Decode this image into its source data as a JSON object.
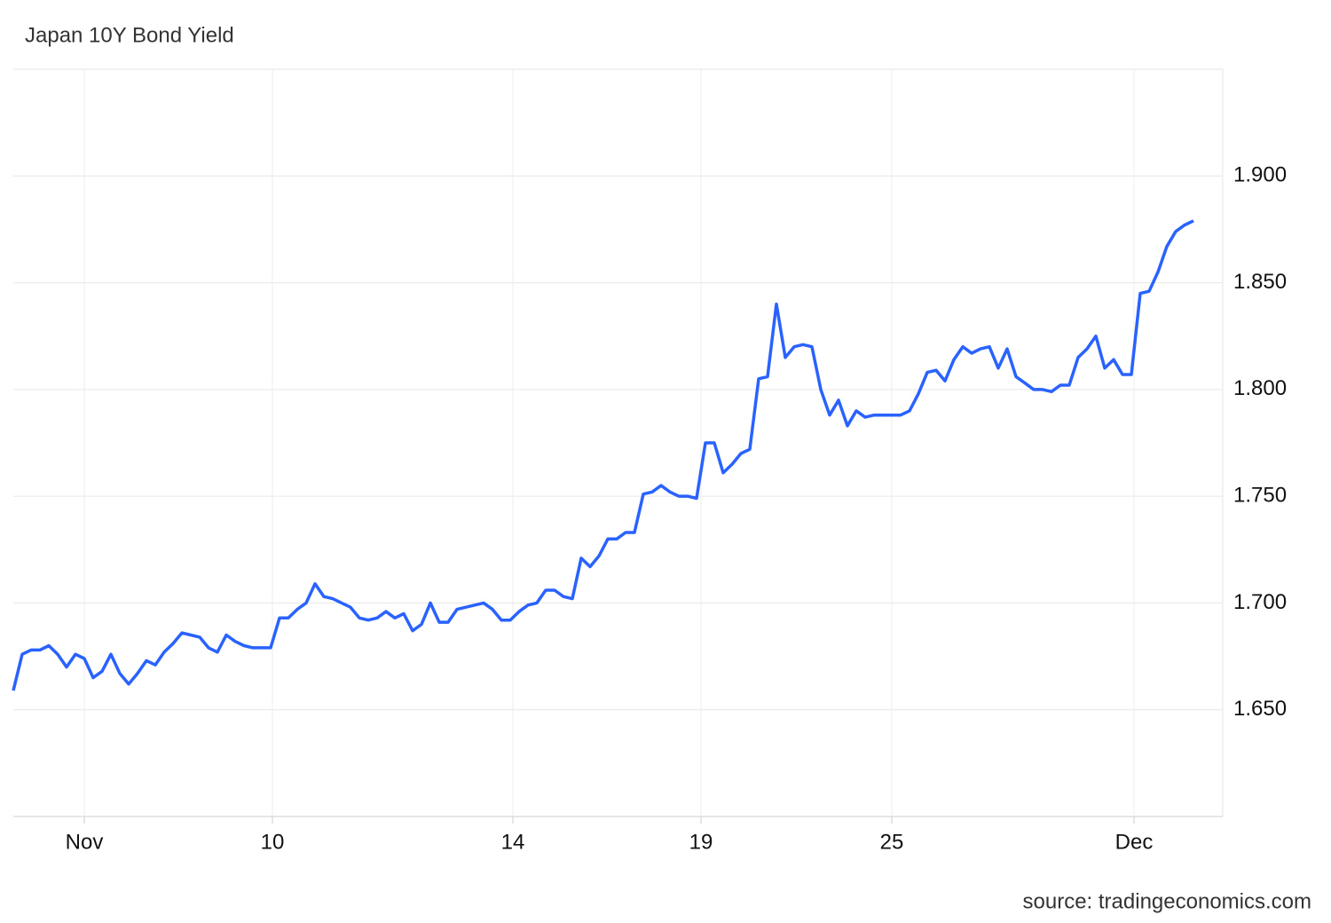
{
  "chart_data": {
    "type": "line",
    "title": "Japan 10Y Bond Yield",
    "source": "source: tradingeconomics.com",
    "series": [
      {
        "color": "#2962ff",
        "values": [
          1.659,
          1.676,
          1.678,
          1.678,
          1.68,
          1.676,
          1.67,
          1.676,
          1.674,
          1.665,
          1.668,
          1.676,
          1.667,
          1.662,
          1.667,
          1.673,
          1.671,
          1.677,
          1.681,
          1.686,
          1.685,
          1.684,
          1.679,
          1.677,
          1.685,
          1.682,
          1.68,
          1.679,
          1.679,
          1.679,
          1.693,
          1.693,
          1.697,
          1.7,
          1.709,
          1.703,
          1.702,
          1.7,
          1.698,
          1.693,
          1.692,
          1.693,
          1.696,
          1.693,
          1.695,
          1.687,
          1.69,
          1.7,
          1.691,
          1.691,
          1.697,
          1.698,
          1.699,
          1.7,
          1.697,
          1.692,
          1.692,
          1.696,
          1.699,
          1.7,
          1.706,
          1.706,
          1.703,
          1.702,
          1.721,
          1.717,
          1.722,
          1.73,
          1.73,
          1.733,
          1.733,
          1.751,
          1.752,
          1.755,
          1.752,
          1.75,
          1.75,
          1.749,
          1.775,
          1.775,
          1.761,
          1.765,
          1.77,
          1.772,
          1.805,
          1.806,
          1.84,
          1.815,
          1.82,
          1.821,
          1.82,
          1.8,
          1.788,
          1.795,
          1.783,
          1.79,
          1.787,
          1.788,
          1.788,
          1.788,
          1.788,
          1.79,
          1.798,
          1.808,
          1.809,
          1.804,
          1.814,
          1.82,
          1.817,
          1.819,
          1.82,
          1.81,
          1.819,
          1.806,
          1.803,
          1.8,
          1.8,
          1.799,
          1.802,
          1.802,
          1.815,
          1.819,
          1.825,
          1.81,
          1.814,
          1.807,
          1.807,
          1.845,
          1.846,
          1.855,
          1.867,
          1.874,
          1.877,
          1.879
        ]
      }
    ],
    "xlim": [
      0,
      136.3
    ],
    "xticks": [
      {
        "value": 8,
        "label": "Nov"
      },
      {
        "value": 29.2,
        "label": "10"
      },
      {
        "value": 56.3,
        "label": "14"
      },
      {
        "value": 77.5,
        "label": "19"
      },
      {
        "value": 99,
        "label": "25"
      },
      {
        "value": 126.3,
        "label": "Dec"
      }
    ],
    "ylim": [
      1.6,
      1.95
    ],
    "yticks": [
      {
        "value": 1.65,
        "label": "1.650"
      },
      {
        "value": 1.7,
        "label": "1.700"
      },
      {
        "value": 1.75,
        "label": "1.750"
      },
      {
        "value": 1.8,
        "label": "1.800"
      },
      {
        "value": 1.85,
        "label": "1.850"
      },
      {
        "value": 1.9,
        "label": "1.900"
      }
    ],
    "grid": true
  }
}
